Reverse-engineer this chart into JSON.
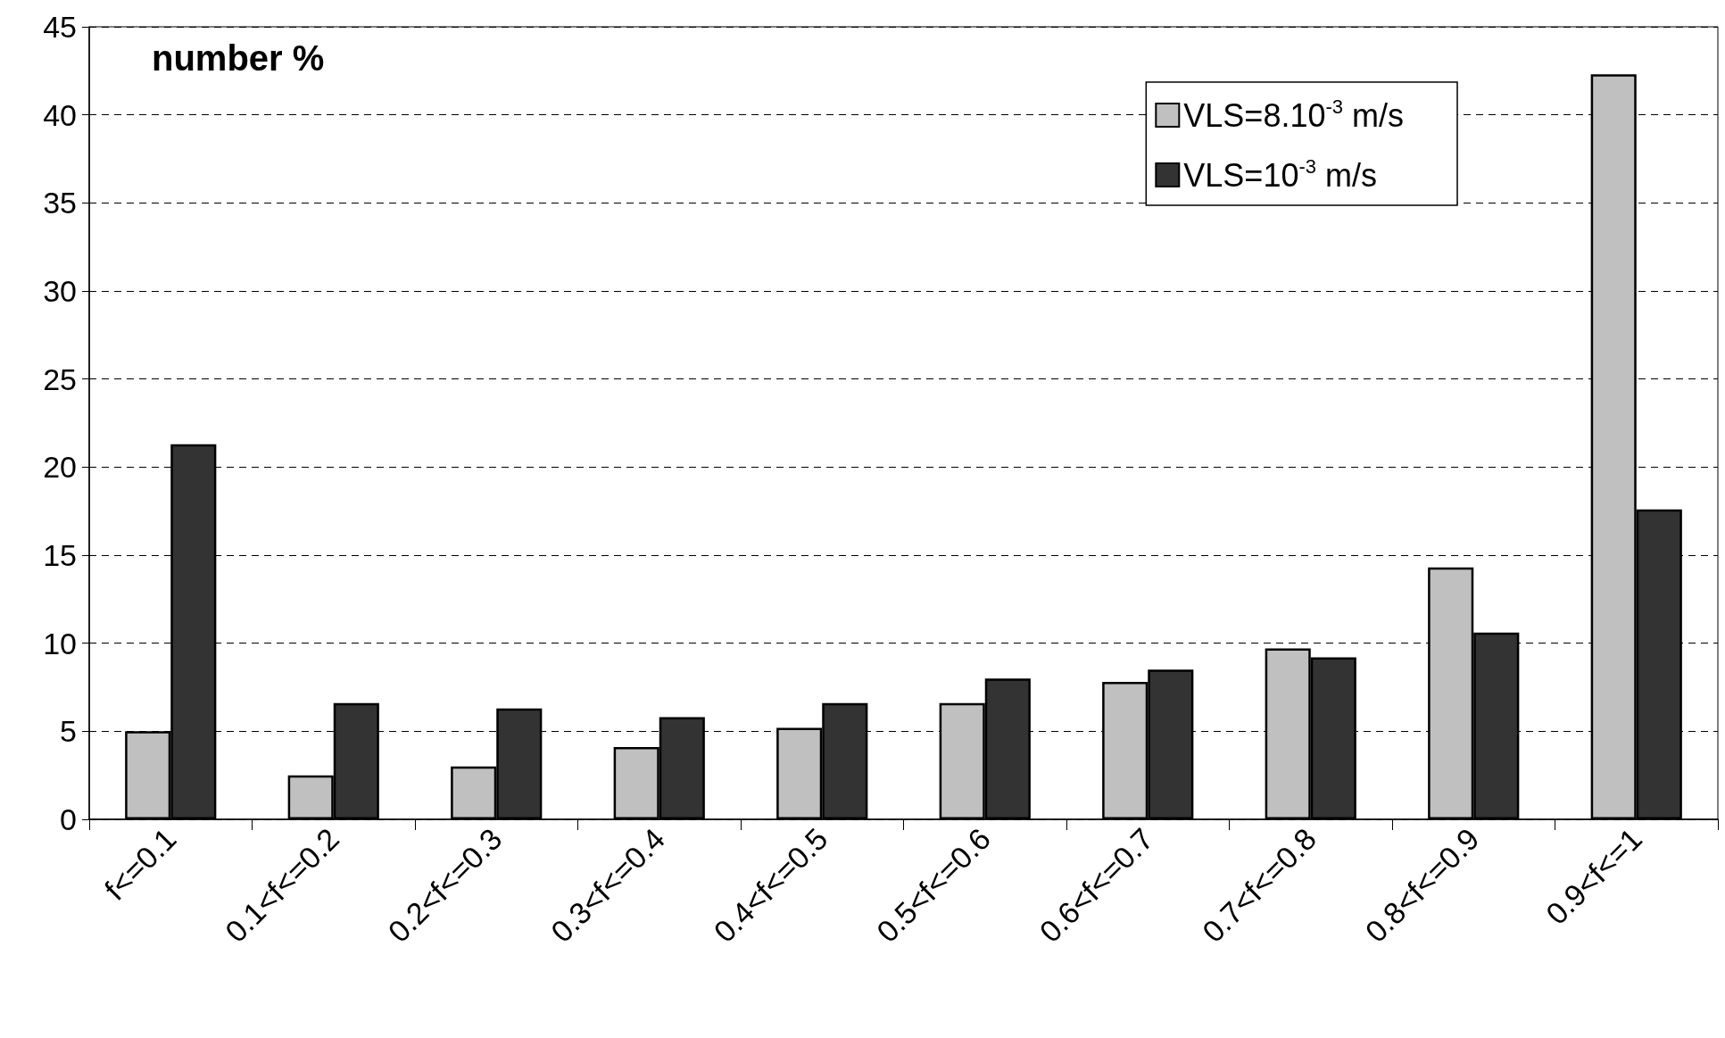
{
  "chart_data": {
    "type": "bar",
    "title": "number %",
    "categories": [
      "f<=0.1",
      "0.1<f<=0.2",
      "0.2<f<=0.3",
      "0.3<f<=0.4",
      "0.4<f<=0.5",
      "0.5<f<=0.6",
      "0.6<f<=0.7",
      "0.7<f<=0.8",
      "0.8<f<=0.9",
      "0.9<f<=1"
    ],
    "series": [
      {
        "name": "VLS=8.10$^{-3}$ m/s",
        "color": "#c0c0c0",
        "values": [
          5.0,
          2.5,
          3.0,
          4.1,
          5.2,
          6.6,
          7.8,
          9.7,
          14.3,
          42.3
        ]
      },
      {
        "name": "VLS=10$^{-3}$ m/s",
        "color": "#333333",
        "values": [
          21.3,
          6.6,
          6.3,
          5.8,
          6.6,
          8.0,
          8.5,
          9.2,
          10.6,
          17.6
        ]
      }
    ],
    "ylim": [
      0,
      45
    ],
    "yticks": [
      0,
      5,
      10,
      15,
      20,
      25,
      30,
      35,
      40,
      45
    ],
    "grid": "y",
    "legend": "top right"
  }
}
